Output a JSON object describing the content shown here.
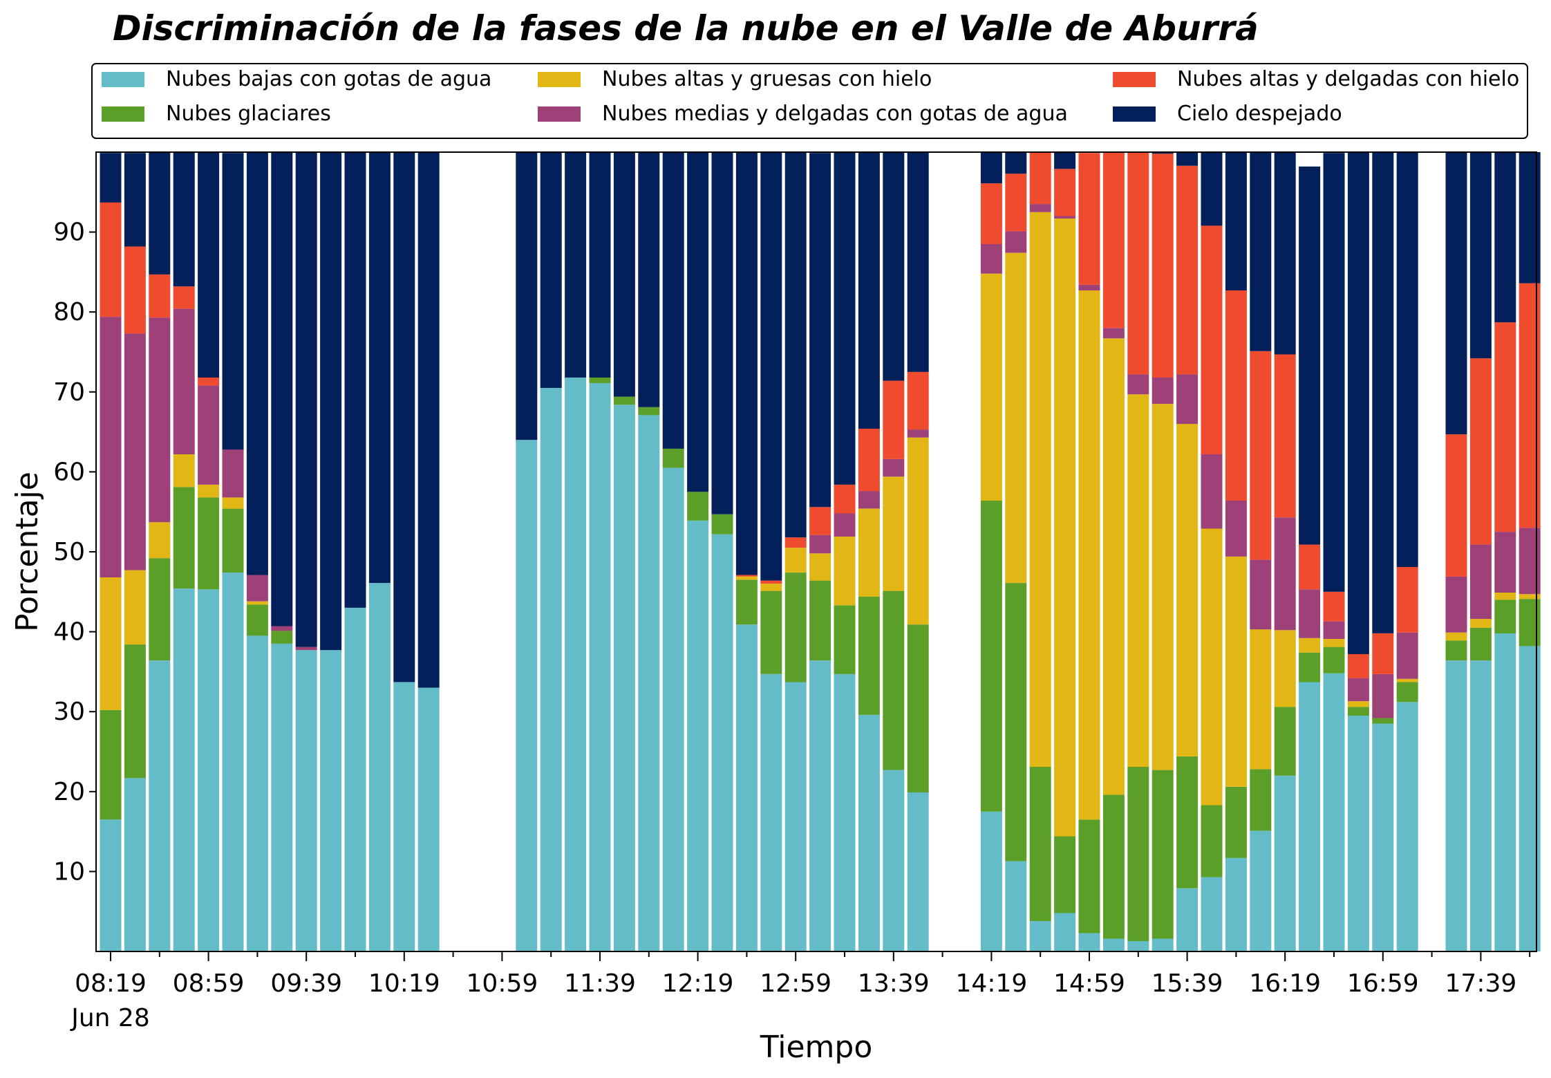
{
  "colors": {
    "low_water": "#65bcc9",
    "glaciar": "#5b9f28",
    "high_thick_ice": "#e2b614",
    "mid_thin_water": "#9e4178",
    "high_thin_ice": "#ef4b2e",
    "clear": "#03205b"
  },
  "chart_data": {
    "type": "bar",
    "stacked": true,
    "title": "Discriminación de la fases de la nube en el Valle de Aburrá",
    "xlabel": "Tiempo",
    "ylabel": "Porcentaje",
    "ylim": [
      0,
      100
    ],
    "yticks": [
      10,
      20,
      30,
      40,
      50,
      60,
      70,
      80,
      90
    ],
    "xtick_labels": [
      "08:19",
      "08:59",
      "09:39",
      "10:19",
      "10:59",
      "11:39",
      "12:19",
      "12:59",
      "13:39",
      "14:19",
      "14:59",
      "15:39",
      "16:19",
      "16:59",
      "17:39"
    ],
    "xtick_sublabel": "Jun 28",
    "legend_placement": "top",
    "grid": false,
    "x": [
      "08:19",
      "08:29",
      "08:39",
      "08:49",
      "08:59",
      "09:09",
      "09:19",
      "09:29",
      "09:39",
      "09:49",
      "09:59",
      "10:09",
      "10:19",
      "10:29",
      "10:39",
      "10:49",
      "10:59",
      "11:09",
      "11:19",
      "11:29",
      "11:39",
      "11:49",
      "11:59",
      "12:09",
      "12:19",
      "12:29",
      "12:39",
      "12:49",
      "12:59",
      "13:09",
      "13:19",
      "13:29",
      "13:39",
      "13:49",
      "13:59",
      "14:09",
      "14:19",
      "14:29",
      "14:39",
      "14:49",
      "14:59",
      "15:09",
      "15:19",
      "15:29",
      "15:39",
      "15:49",
      "15:59",
      "16:09",
      "16:19",
      "16:29",
      "16:39",
      "16:49",
      "16:59",
      "17:09",
      "17:19",
      "17:29",
      "17:39",
      "17:49",
      "17:59"
    ],
    "series": [
      {
        "name": "Nubes bajas con gotas de agua",
        "color_key": "low_water",
        "values": [
          16.5,
          21.7,
          36.4,
          45.4,
          45.3,
          47.4,
          39.5,
          38.5,
          37.7,
          37.7,
          43.0,
          46.1,
          33.7,
          33.0,
          null,
          null,
          null,
          64.0,
          70.5,
          71.8,
          71.1,
          68.4,
          67.1,
          60.5,
          53.9,
          52.2,
          40.9,
          34.7,
          33.7,
          36.4,
          34.7,
          29.6,
          22.7,
          19.9,
          null,
          null,
          17.5,
          11.3,
          3.8,
          4.8,
          2.3,
          1.6,
          1.3,
          1.6,
          7.9,
          9.3,
          11.7,
          15.1,
          22.0,
          33.7,
          34.8,
          29.5,
          28.5,
          31.2,
          null,
          36.4,
          36.4,
          39.8,
          38.2
        ]
      },
      {
        "name": "Nubes glaciares",
        "color_key": "glaciar",
        "values": [
          13.7,
          16.7,
          12.8,
          12.7,
          11.5,
          8.0,
          3.9,
          1.6,
          0,
          0,
          0,
          0,
          0,
          0,
          null,
          null,
          null,
          0,
          0,
          0,
          0.7,
          1.0,
          1.0,
          2.4,
          3.6,
          2.5,
          5.6,
          10.4,
          13.7,
          10.0,
          8.6,
          14.8,
          22.4,
          21.0,
          null,
          null,
          38.9,
          34.8,
          19.3,
          9.6,
          14.2,
          18.0,
          21.8,
          21.1,
          16.5,
          9.0,
          8.9,
          7.7,
          8.6,
          3.7,
          3.3,
          1.1,
          0.7,
          2.5,
          null,
          2.5,
          4.1,
          4.2,
          5.9
        ]
      },
      {
        "name": "Nubes altas y gruesas con hielo",
        "color_key": "high_thick_ice",
        "values": [
          16.6,
          9.3,
          4.5,
          4.1,
          1.6,
          1.4,
          0.4,
          0,
          0,
          0,
          0,
          0,
          0,
          0,
          null,
          null,
          null,
          0,
          0,
          0,
          0,
          0,
          0,
          0,
          0,
          0,
          0.4,
          0.9,
          3.1,
          3.4,
          8.6,
          11.0,
          14.3,
          23.4,
          null,
          null,
          28.4,
          41.3,
          69.4,
          77.3,
          66.2,
          57.1,
          46.6,
          45.8,
          41.6,
          34.6,
          28.8,
          17.5,
          9.6,
          1.8,
          1.0,
          0.7,
          0,
          0.4,
          null,
          1.0,
          1.1,
          0.9,
          0.6
        ]
      },
      {
        "name": "Nubes medias y delgadas con gotas de agua",
        "color_key": "mid_thin_water",
        "values": [
          32.6,
          29.6,
          25.6,
          18.2,
          12.4,
          6.0,
          3.3,
          0.6,
          0.4,
          0,
          0,
          0,
          0,
          0,
          null,
          null,
          null,
          0,
          0,
          0,
          0,
          0,
          0,
          0,
          0,
          0,
          0,
          0,
          0,
          2.3,
          2.9,
          2.2,
          2.2,
          1.0,
          null,
          null,
          3.7,
          2.7,
          1.0,
          0.3,
          0.7,
          1.3,
          2.5,
          3.3,
          6.2,
          9.3,
          7.0,
          8.7,
          14.1,
          6.1,
          2.2,
          2.9,
          5.5,
          5.8,
          null,
          7.0,
          9.3,
          7.6,
          8.3
        ]
      },
      {
        "name": "Nubes altas y delgadas con hielo",
        "color_key": "high_thin_ice",
        "values": [
          14.3,
          10.9,
          5.4,
          2.8,
          1.0,
          0,
          0,
          0,
          0,
          0,
          0,
          0,
          0,
          0,
          null,
          null,
          null,
          0,
          0,
          0,
          0,
          0,
          0,
          0,
          0,
          0,
          0.2,
          0.4,
          1.3,
          3.5,
          3.6,
          7.8,
          9.8,
          7.2,
          null,
          null,
          7.6,
          7.2,
          6.5,
          5.9,
          16.5,
          22.3,
          27.8,
          28.0,
          26.1,
          28.6,
          26.3,
          26.1,
          20.4,
          5.6,
          3.7,
          3.0,
          5.1,
          8.2,
          null,
          17.8,
          23.3,
          26.2,
          30.6
        ]
      },
      {
        "name": "Cielo despejado",
        "color_key": "clear",
        "values": [
          6.2,
          11.7,
          15.4,
          16.9,
          28.2,
          37.1,
          52.9,
          59.3,
          61.9,
          62.3,
          57.0,
          53.9,
          66.3,
          67.0,
          null,
          null,
          null,
          36.0,
          29.5,
          28.2,
          28.2,
          30.6,
          31.9,
          37.1,
          42.5,
          45.3,
          52.9,
          53.6,
          48.2,
          44.3,
          41.7,
          34.6,
          28.6,
          27.5,
          null,
          null,
          3.9,
          2.7,
          0,
          2.1,
          0,
          0,
          0,
          0.2,
          1.7,
          9.2,
          17.3,
          24.9,
          25.3,
          47.3,
          54.9,
          62.8,
          60.2,
          51.9,
          null,
          35.3,
          25.8,
          21.3,
          16.4
        ]
      }
    ]
  }
}
